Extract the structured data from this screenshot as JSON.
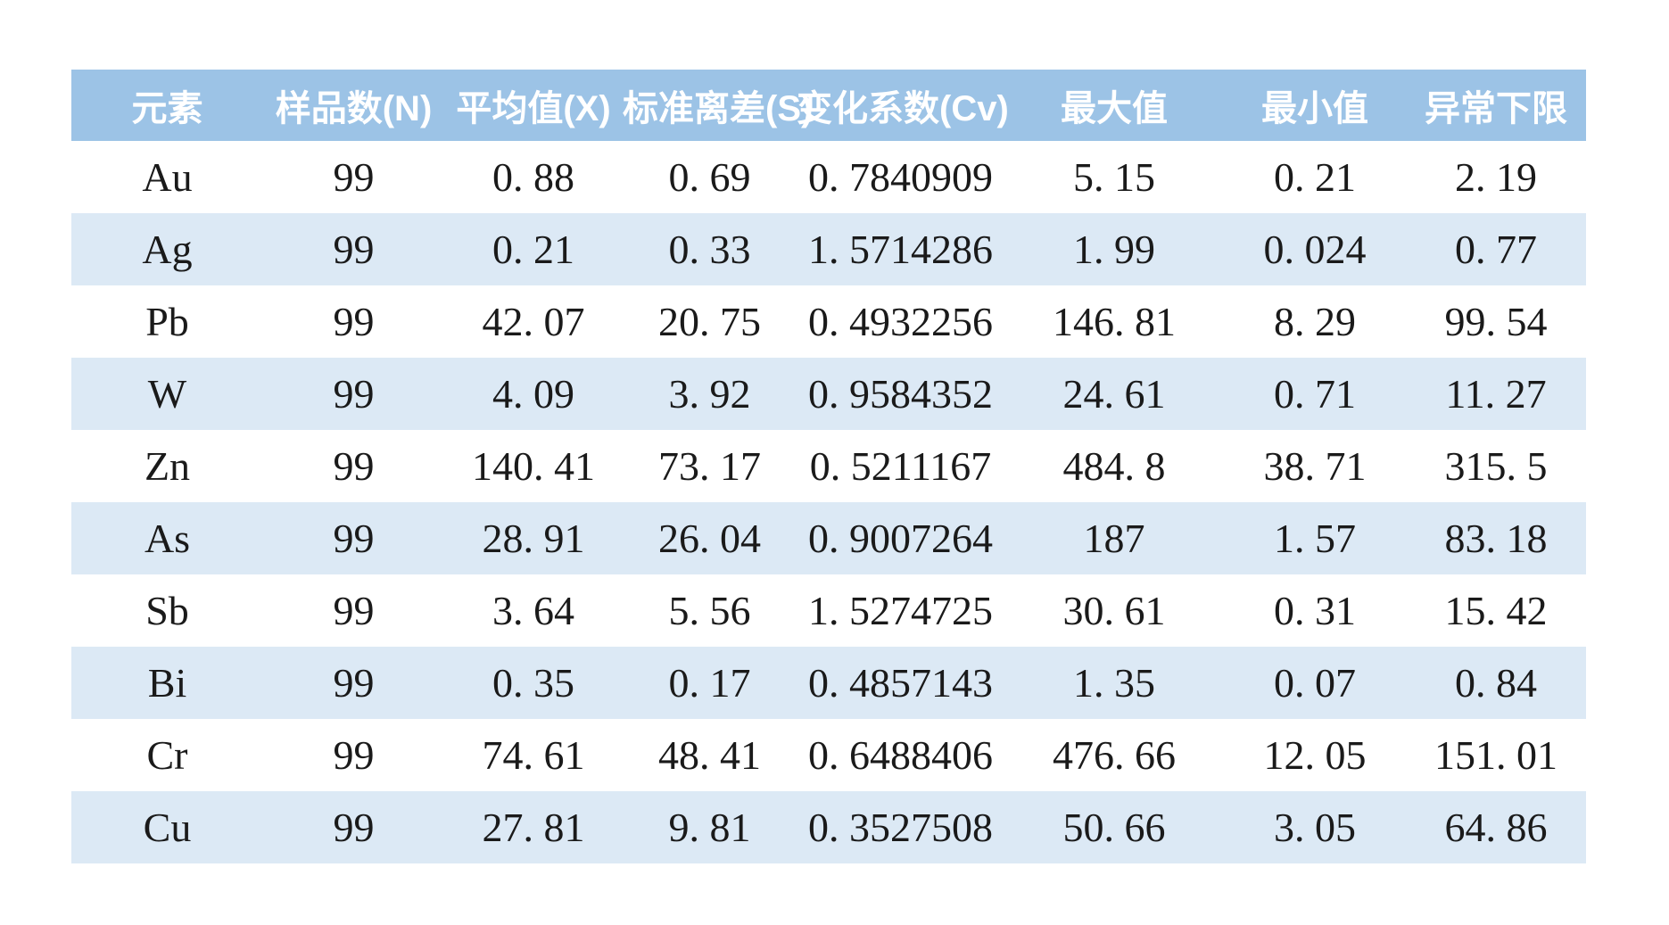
{
  "colors": {
    "header_bg": "#9CC3E6",
    "header_text": "#FFFFFF",
    "band_bg": "#DCE9F5",
    "row_bg": "#FFFFFF",
    "cell_text": "#1A1A1A",
    "page_bg": "#FFFFFF"
  },
  "table": {
    "headers": [
      "元素",
      "样品数(N)",
      "平均值(X)",
      "标准离差(S)",
      "变化系数(Cv)",
      "最大值",
      "最小值",
      "异常下限"
    ],
    "column_keys": [
      "element",
      "sample-count",
      "mean",
      "std-deviation",
      "variation-coefficient",
      "max-value",
      "min-value",
      "anomaly-lower-limit"
    ],
    "rows": [
      [
        "Au",
        "99",
        "0. 88",
        "0. 69",
        "0. 7840909",
        "5. 15",
        "0. 21",
        "2. 19"
      ],
      [
        "Ag",
        "99",
        "0. 21",
        "0. 33",
        "1. 5714286",
        "1. 99",
        "0. 024",
        "0. 77"
      ],
      [
        "Pb",
        "99",
        "42. 07",
        "20. 75",
        "0. 4932256",
        "146. 81",
        "8. 29",
        "99. 54"
      ],
      [
        "W",
        "99",
        "4. 09",
        "3. 92",
        "0. 9584352",
        "24. 61",
        "0. 71",
        "11. 27"
      ],
      [
        "Zn",
        "99",
        "140. 41",
        "73. 17",
        "0. 5211167",
        "484. 8",
        "38. 71",
        "315. 5"
      ],
      [
        "As",
        "99",
        "28. 91",
        "26. 04",
        "0. 9007264",
        "187",
        "1. 57",
        "83. 18"
      ],
      [
        "Sb",
        "99",
        "3. 64",
        "5. 56",
        "1. 5274725",
        "30. 61",
        "0. 31",
        "15. 42"
      ],
      [
        "Bi",
        "99",
        "0. 35",
        "0. 17",
        "0. 4857143",
        "1. 35",
        "0. 07",
        "0. 84"
      ],
      [
        "Cr",
        "99",
        "74. 61",
        "48. 41",
        "0. 6488406",
        "476. 66",
        "12. 05",
        "151. 01"
      ],
      [
        "Cu",
        "99",
        "27. 81",
        "9. 81",
        "0. 3527508",
        "50. 66",
        "3. 05",
        "64. 86"
      ]
    ]
  }
}
